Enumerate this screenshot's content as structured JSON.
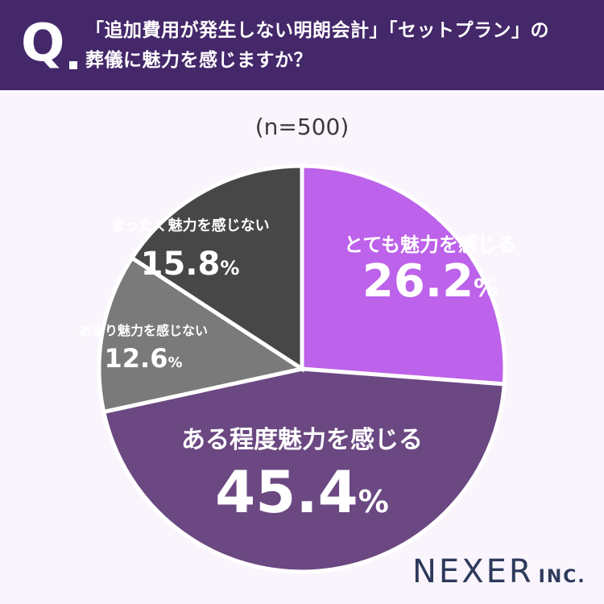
{
  "header": {
    "q_mark": "Q",
    "question_line1": "「追加費用が発生しない明朗会計」「セットプラン」の",
    "question_line2": "葬儀に魅力を感じますか？"
  },
  "sample_size_label": "(n=500)",
  "colors": {
    "header_bg": "#44286a",
    "page_bg": "#faf5fc",
    "slice_strong": "#bd62ea",
    "slice_some": "#6b4882",
    "slice_little": "#7a7a7a",
    "slice_none": "#474747"
  },
  "chart_data": {
    "type": "pie",
    "start": "12 o'clock",
    "direction": "clockwise",
    "categories": [
      "とても魅力を感じる",
      "ある程度魅力を感じる",
      "あまり魅力を感じない",
      "まったく魅力を感じない"
    ],
    "values": [
      26.2,
      45.4,
      12.6,
      15.8
    ],
    "value_labels": [
      "26.2",
      "45.4",
      "12.6",
      "15.8"
    ],
    "unit": "%"
  },
  "logo": {
    "name": "NEXER",
    "suffix": "INC."
  }
}
